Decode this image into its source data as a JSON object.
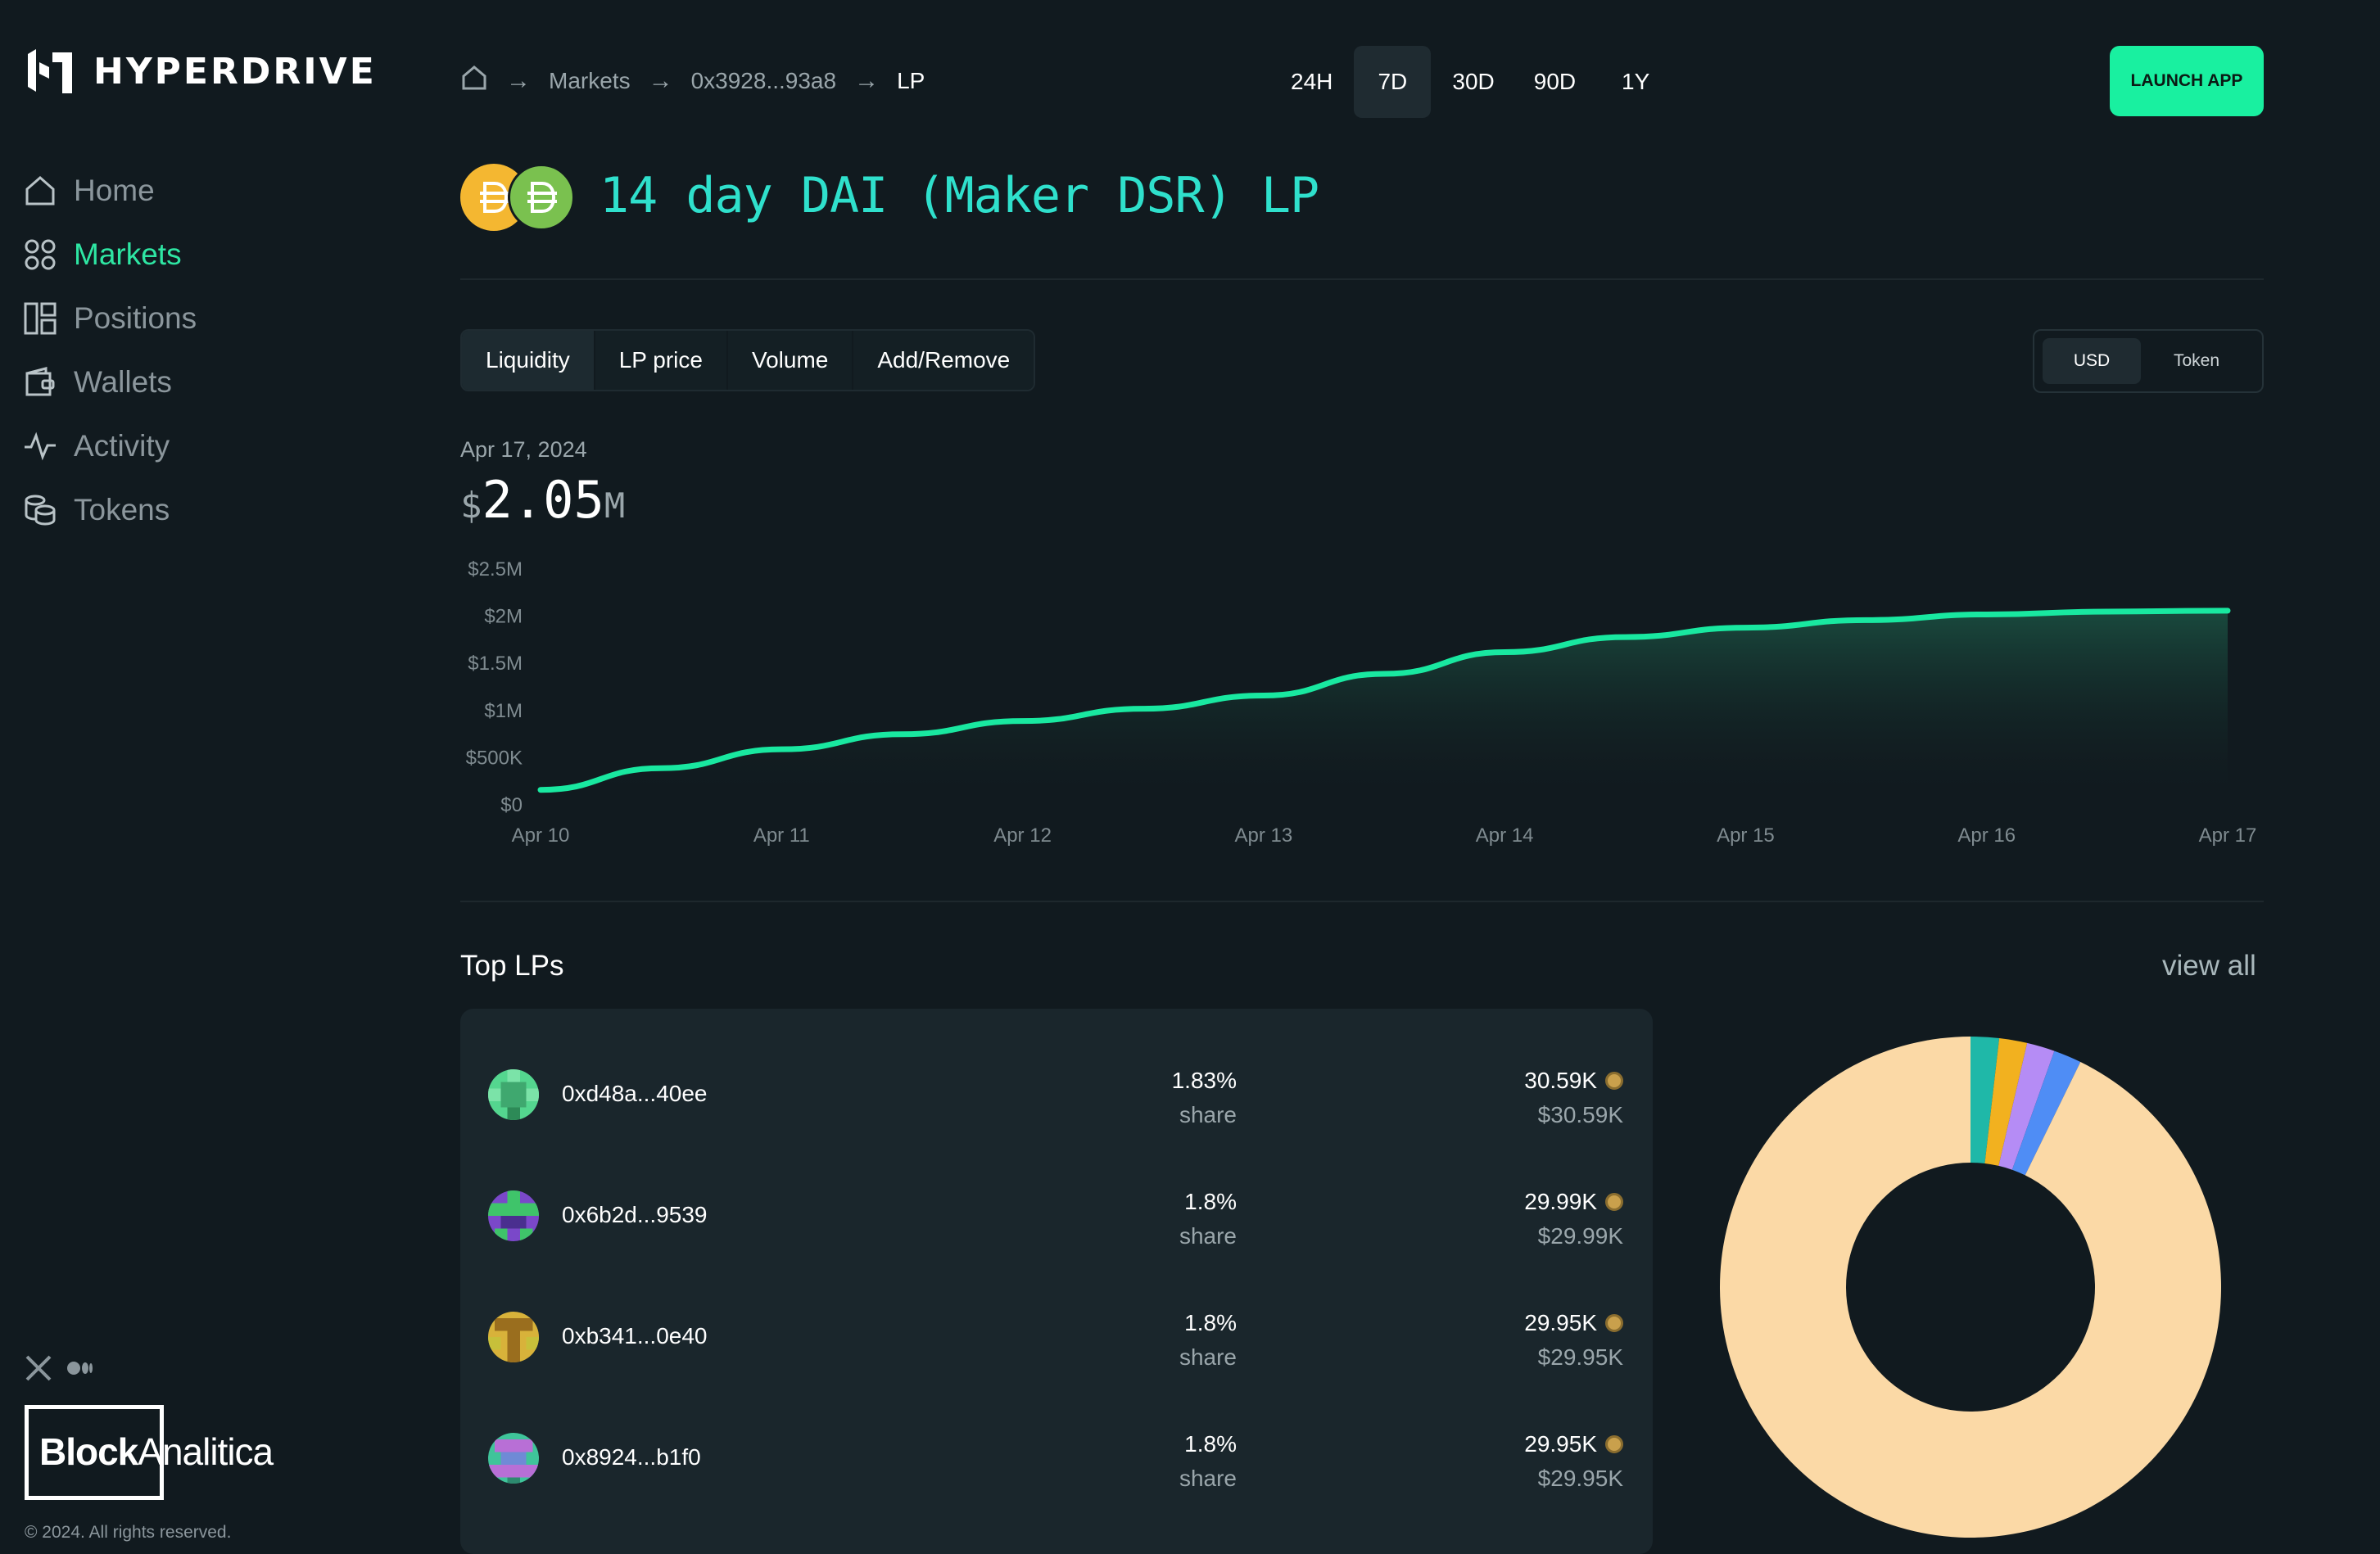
{
  "app": {
    "name": "HYPERDRIVE",
    "launch_label": "LAUNCH APP"
  },
  "nav": {
    "items": [
      {
        "label": "Home",
        "icon": "home-icon",
        "active": false
      },
      {
        "label": "Markets",
        "icon": "grid-icon",
        "active": true
      },
      {
        "label": "Positions",
        "icon": "layout-icon",
        "active": false
      },
      {
        "label": "Wallets",
        "icon": "wallet-icon",
        "active": false
      },
      {
        "label": "Activity",
        "icon": "activity-icon",
        "active": false
      },
      {
        "label": "Tokens",
        "icon": "coins-icon",
        "active": false
      }
    ]
  },
  "footer": {
    "brand_bold": "Block",
    "brand_light": "Analitica",
    "copyright": "© 2024. All rights reserved."
  },
  "breadcrumb": {
    "items": [
      "Markets",
      "0x3928...93a8",
      "LP"
    ]
  },
  "time_range": {
    "options": [
      "24H",
      "7D",
      "30D",
      "90D",
      "1Y"
    ],
    "selected": "7D"
  },
  "pool": {
    "title": "14 day DAI (Maker DSR) LP"
  },
  "chart_tabs": {
    "items": [
      "Liquidity",
      "LP price",
      "Volume",
      "Add/Remove"
    ],
    "selected": "Liquidity"
  },
  "unit_toggle": {
    "items": [
      "USD",
      "Token"
    ],
    "selected": "USD"
  },
  "summary": {
    "date": "Apr 17, 2024",
    "currency": "$",
    "value": "2.05",
    "suffix": "M"
  },
  "colors": {
    "accent": "#19f0a0",
    "title": "#2fe0cc",
    "line": "#19e8a0",
    "background": "#111a1f"
  },
  "chart_data": {
    "type": "area",
    "title": "",
    "xlabel": "",
    "ylabel": "",
    "x": [
      "Apr 10",
      "Apr 11",
      "Apr 12",
      "Apr 13",
      "Apr 14",
      "Apr 15",
      "Apr 16",
      "Apr 17"
    ],
    "y_tick_labels": [
      "$0",
      "$500K",
      "$1M",
      "$1.5M",
      "$2M",
      "$2.5M"
    ],
    "ylim": [
      0,
      2500000
    ],
    "grid": false,
    "series": [
      {
        "x": [
          "Apr 10",
          "Apr 10.5",
          "Apr 11",
          "Apr 11.5",
          "Apr 12",
          "Apr 12.5",
          "Apr 13",
          "Apr 13.5",
          "Apr 14",
          "Apr 14.5",
          "Apr 15",
          "Apr 15.5",
          "Apr 16",
          "Apr 16.5",
          "Apr 17"
        ],
        "values": [
          150000,
          380000,
          580000,
          740000,
          880000,
          1010000,
          1150000,
          1380000,
          1610000,
          1770000,
          1870000,
          1950000,
          2010000,
          2040000,
          2050000
        ]
      }
    ]
  },
  "top_lps": {
    "title": "Top LPs",
    "view_all": "view all",
    "rows": [
      {
        "address": "0xd48a...40ee",
        "share": "1.83%",
        "share_label": "share",
        "amount": "30.59K",
        "usd": "$30.59K"
      },
      {
        "address": "0x6b2d...9539",
        "share": "1.8%",
        "share_label": "share",
        "amount": "29.99K",
        "usd": "$29.99K"
      },
      {
        "address": "0xb341...0e40",
        "share": "1.8%",
        "share_label": "share",
        "amount": "29.95K",
        "usd": "$29.95K"
      },
      {
        "address": "0x8924...b1f0",
        "share": "1.8%",
        "share_label": "share",
        "amount": "29.95K",
        "usd": "$29.95K"
      }
    ]
  },
  "lp_distribution": {
    "type": "pie",
    "slices": [
      {
        "value": 1.83,
        "color": "#1fb8a8"
      },
      {
        "value": 1.8,
        "color": "#f2b11f"
      },
      {
        "value": 1.8,
        "color": "#b58cf5"
      },
      {
        "value": 1.8,
        "color": "#4f8df5"
      },
      {
        "value": 92.77,
        "color": "#fbd9a6"
      }
    ]
  }
}
